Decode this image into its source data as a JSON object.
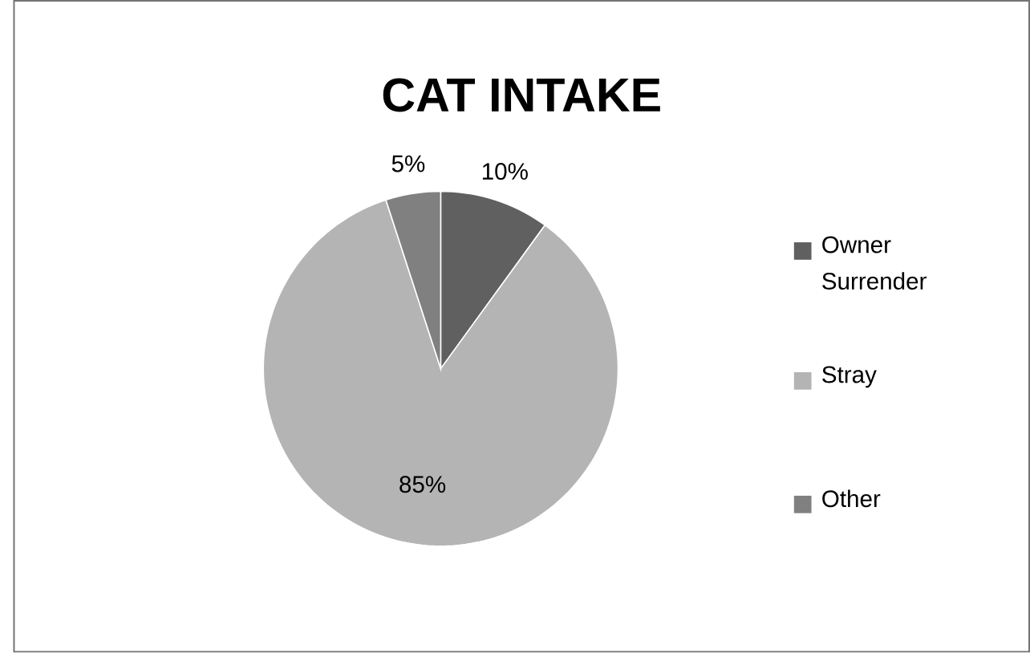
{
  "chart_data": {
    "type": "pie",
    "title": "CAT INTAKE",
    "categories": [
      "Owner Surrender",
      "Stray",
      "Other"
    ],
    "values": [
      10,
      85,
      5
    ],
    "colors": [
      "#606060",
      "#b4b4b4",
      "#808080"
    ],
    "value_labels": [
      "10%",
      "85%",
      "5%"
    ],
    "legend": "right"
  }
}
